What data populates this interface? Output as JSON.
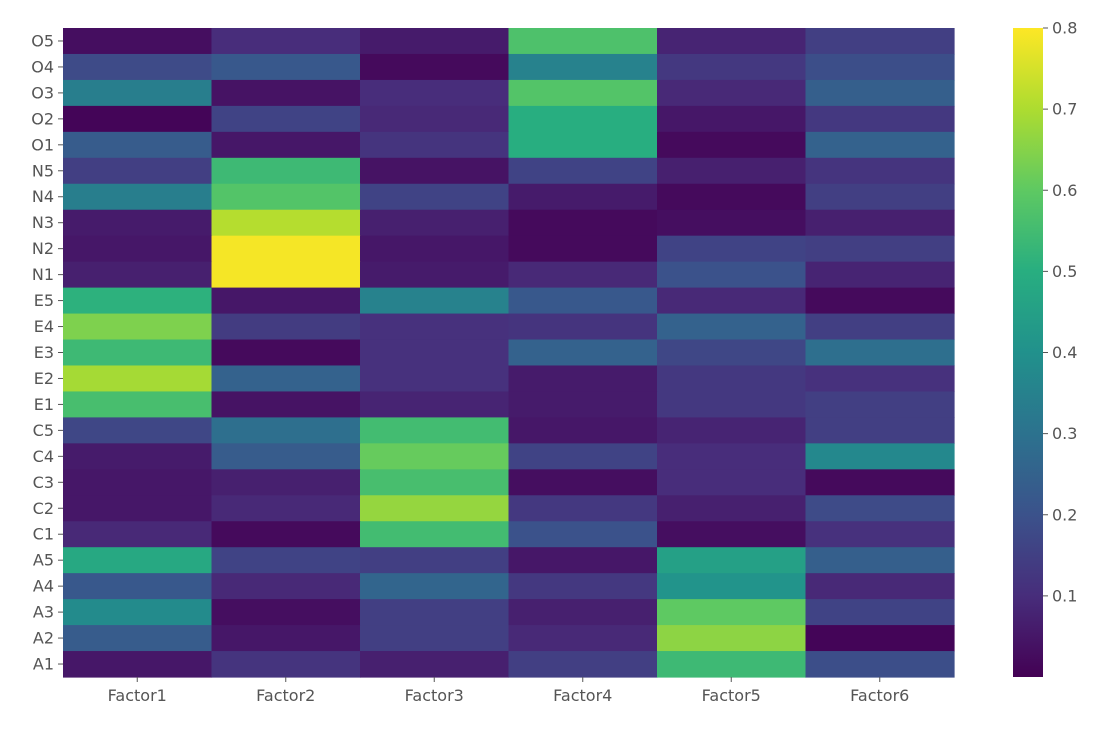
{
  "chart_data": {
    "type": "heatmap",
    "title": "",
    "xlabel": "",
    "ylabel": "",
    "colormap": "viridis",
    "grid": false,
    "x_categories": [
      "Factor1",
      "Factor2",
      "Factor3",
      "Factor4",
      "Factor5",
      "Factor6"
    ],
    "y_categories": [
      "O5",
      "O4",
      "O3",
      "O2",
      "O1",
      "N5",
      "N4",
      "N3",
      "N2",
      "N1",
      "E5",
      "E4",
      "E3",
      "E2",
      "E1",
      "C5",
      "C4",
      "C3",
      "C2",
      "C1",
      "A5",
      "A4",
      "A3",
      "A2",
      "A1"
    ],
    "values": [
      [
        0.03,
        0.1,
        0.06,
        0.57,
        0.08,
        0.15
      ],
      [
        0.18,
        0.22,
        0.02,
        0.35,
        0.13,
        0.19
      ],
      [
        0.34,
        0.04,
        0.1,
        0.58,
        0.09,
        0.24
      ],
      [
        0.01,
        0.16,
        0.09,
        0.5,
        0.05,
        0.13
      ],
      [
        0.23,
        0.05,
        0.12,
        0.5,
        0.02,
        0.25
      ],
      [
        0.15,
        0.54,
        0.04,
        0.16,
        0.07,
        0.12
      ],
      [
        0.34,
        0.58,
        0.16,
        0.06,
        0.02,
        0.15
      ],
      [
        0.06,
        0.71,
        0.07,
        0.02,
        0.03,
        0.07
      ],
      [
        0.05,
        0.79,
        0.05,
        0.02,
        0.16,
        0.15
      ],
      [
        0.07,
        0.79,
        0.06,
        0.09,
        0.2,
        0.08
      ],
      [
        0.51,
        0.05,
        0.35,
        0.22,
        0.09,
        0.02
      ],
      [
        0.64,
        0.14,
        0.11,
        0.12,
        0.25,
        0.15
      ],
      [
        0.54,
        0.02,
        0.11,
        0.25,
        0.17,
        0.29
      ],
      [
        0.69,
        0.25,
        0.11,
        0.06,
        0.13,
        0.11
      ],
      [
        0.56,
        0.04,
        0.08,
        0.06,
        0.13,
        0.15
      ],
      [
        0.17,
        0.29,
        0.55,
        0.05,
        0.08,
        0.15
      ],
      [
        0.06,
        0.23,
        0.61,
        0.16,
        0.1,
        0.37
      ],
      [
        0.05,
        0.07,
        0.56,
        0.03,
        0.1,
        0.02
      ],
      [
        0.05,
        0.09,
        0.67,
        0.13,
        0.07,
        0.18
      ],
      [
        0.09,
        0.02,
        0.55,
        0.2,
        0.03,
        0.11
      ],
      [
        0.48,
        0.16,
        0.15,
        0.05,
        0.45,
        0.24
      ],
      [
        0.22,
        0.09,
        0.26,
        0.13,
        0.41,
        0.09
      ],
      [
        0.38,
        0.03,
        0.15,
        0.07,
        0.6,
        0.16
      ],
      [
        0.23,
        0.05,
        0.15,
        0.09,
        0.66,
        0.01
      ],
      [
        0.05,
        0.12,
        0.07,
        0.15,
        0.54,
        0.19
      ]
    ],
    "colorbar": {
      "min": 0.0,
      "max": 0.8,
      "ticks": [
        0.1,
        0.2,
        0.3,
        0.4,
        0.5,
        0.6,
        0.7,
        0.8
      ],
      "tick_labels": [
        "0.1",
        "0.2",
        "0.3",
        "0.4",
        "0.5",
        "0.6",
        "0.7",
        "0.8"
      ]
    }
  }
}
